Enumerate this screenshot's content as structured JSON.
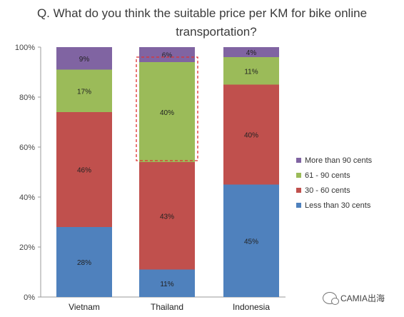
{
  "chart_data": {
    "type": "bar",
    "stacked": true,
    "title_line1": "Q. What do you think the suitable price per KM for bike online",
    "title_line2": "transportation?",
    "categories": [
      "Vietnam",
      "Thailand",
      "Indonesia"
    ],
    "series": [
      {
        "name": "Less than 30 cents",
        "color": "#4f81bd",
        "values": [
          28,
          11,
          45
        ],
        "labels": [
          "28%",
          "11%",
          "45%"
        ]
      },
      {
        "name": "30 - 60 cents",
        "color": "#c0504d",
        "values": [
          46,
          43,
          40
        ],
        "labels": [
          "46%",
          "43%",
          "40%"
        ]
      },
      {
        "name": "61 - 90 cents",
        "color": "#9bbb59",
        "values": [
          17,
          40,
          11
        ],
        "labels": [
          "17%",
          "40%",
          "11%"
        ]
      },
      {
        "name": "More than 90 cents",
        "color": "#8064a2",
        "values": [
          9,
          6,
          4
        ],
        "labels": [
          "9%",
          "6%",
          "4%"
        ]
      }
    ],
    "yticks": [
      "0%",
      "20%",
      "40%",
      "60%",
      "80%",
      "100%"
    ],
    "ylim": [
      0,
      100
    ],
    "legend_position": "right",
    "highlight": {
      "category": "Thailand",
      "from": 54,
      "to": 100,
      "color": "#e03030"
    }
  },
  "watermark": {
    "text": "CAMIA出海",
    "icon": "wechat-icon"
  }
}
